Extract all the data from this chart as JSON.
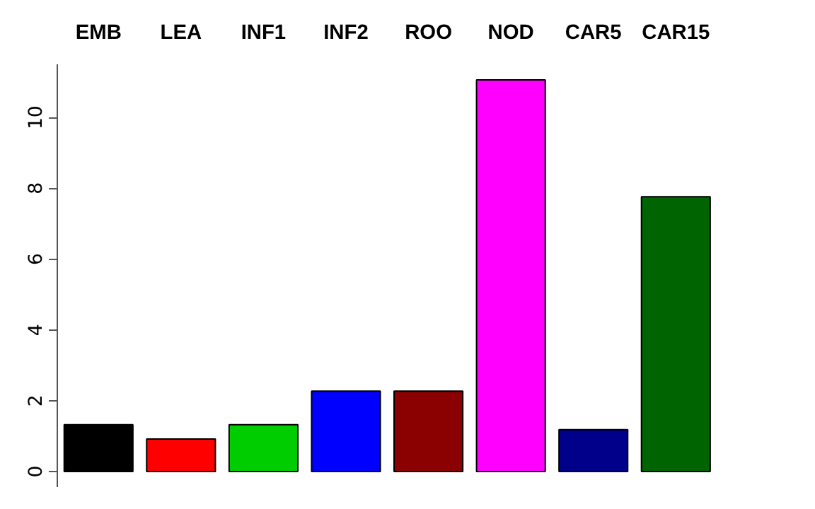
{
  "chart_data": {
    "type": "bar",
    "categories": [
      "EMB",
      "LEA",
      "INF1",
      "INF2",
      "ROO",
      "NOD",
      "CAR5",
      "CAR15"
    ],
    "values": [
      1.32,
      0.92,
      1.32,
      2.27,
      2.27,
      11.06,
      1.18,
      7.76
    ],
    "colors": [
      "#000000",
      "#ff0000",
      "#00cd00",
      "#0000ff",
      "#8b0000",
      "#ff00ff",
      "#00008b",
      "#006400"
    ],
    "ylim": [
      -0.44,
      11.5
    ],
    "yticks": [
      0,
      2,
      4,
      6,
      8,
      10
    ],
    "grid": false
  }
}
